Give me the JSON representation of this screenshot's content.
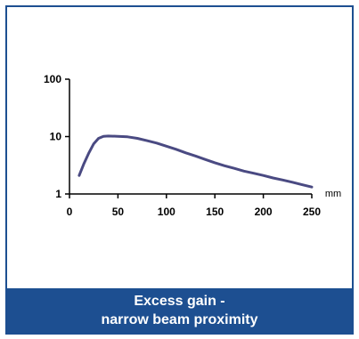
{
  "caption": {
    "line1": "Excess gain -",
    "line2": "narrow beam  proximity"
  },
  "chart_data": {
    "type": "line",
    "title": "Excess gain - narrow beam  proximity",
    "xlabel": "mm",
    "ylabel": "",
    "x_scale": "linear",
    "y_scale": "log",
    "xlim": [
      0,
      250
    ],
    "ylim": [
      1,
      100
    ],
    "x_ticks": [
      0,
      50,
      100,
      150,
      200,
      250
    ],
    "y_ticks": [
      1,
      10,
      100
    ],
    "grid": false,
    "legend": "none",
    "series": [
      {
        "color": "#4a4a82",
        "x": [
          10,
          15,
          20,
          25,
          30,
          35,
          40,
          50,
          60,
          70,
          80,
          90,
          100,
          110,
          120,
          130,
          140,
          150,
          160,
          170,
          180,
          190,
          200,
          210,
          220,
          230,
          240,
          250
        ],
        "y": [
          2.1,
          3.4,
          5.2,
          7.5,
          9.3,
          10.1,
          10.2,
          10.1,
          9.9,
          9.3,
          8.5,
          7.7,
          6.8,
          6.0,
          5.2,
          4.6,
          4.0,
          3.5,
          3.1,
          2.8,
          2.5,
          2.3,
          2.1,
          1.9,
          1.75,
          1.6,
          1.45,
          1.32
        ]
      }
    ]
  },
  "colors": {
    "frame": "#1d4f91",
    "caption_bg": "#1d4f91",
    "caption_text": "#ffffff",
    "line": "#4a4a82"
  }
}
